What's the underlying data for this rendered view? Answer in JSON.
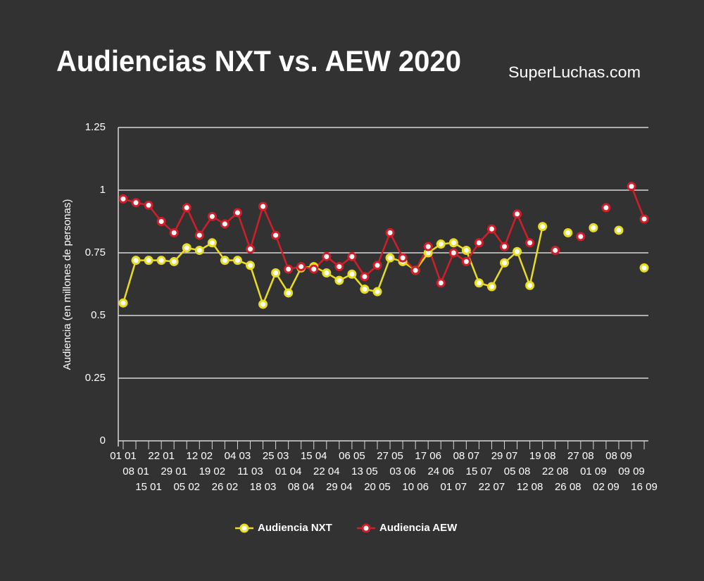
{
  "chart_data": {
    "type": "line",
    "title": "Audiencias NXT vs. AEW 2020",
    "subtitle": "SuperLuchas.com",
    "y_label": "Audiencia (en millones de personas)",
    "categories": [
      "01 01",
      "08 01",
      "15 01",
      "22 01",
      "29 01",
      "05 02",
      "12 02",
      "19 02",
      "26 02",
      "04 03",
      "11 03",
      "18 03",
      "25 03",
      "01 04",
      "08 04",
      "15 04",
      "22 04",
      "29 04",
      "06 05",
      "13 05",
      "20 05",
      "27 05",
      "03 06",
      "10 06",
      "17 06",
      "24 06",
      "01 07",
      "08 07",
      "15 07",
      "22 07",
      "29 07",
      "05 08",
      "12 08",
      "19 08",
      "22 08",
      "26 08",
      "27 08",
      "01 09",
      "02 09",
      "08 09",
      "09 09",
      "16 09"
    ],
    "series": [
      {
        "name": "Audiencia NXT",
        "color": "#e9dd1f",
        "values": [
          0.55,
          0.72,
          0.72,
          0.72,
          0.715,
          0.77,
          0.76,
          0.79,
          0.72,
          0.72,
          0.7,
          0.545,
          0.67,
          0.59,
          0.69,
          0.695,
          0.67,
          0.64,
          0.665,
          0.605,
          0.595,
          0.73,
          0.715,
          0.68,
          0.75,
          0.785,
          0.79,
          0.76,
          0.63,
          0.615,
          0.71,
          0.755,
          0.62,
          0.855,
          null,
          0.83,
          null,
          0.85,
          null,
          0.84,
          null,
          0.69
        ]
      },
      {
        "name": "Audiencia AEW",
        "color": "#d01f2a",
        "values": [
          0.965,
          0.95,
          0.94,
          0.875,
          0.83,
          0.93,
          0.82,
          0.895,
          0.865,
          0.91,
          0.765,
          0.935,
          0.82,
          0.685,
          0.695,
          0.685,
          0.735,
          0.695,
          0.735,
          0.655,
          0.7,
          0.83,
          0.73,
          0.68,
          0.775,
          0.63,
          0.75,
          0.715,
          0.79,
          0.845,
          0.775,
          0.905,
          0.79,
          null,
          0.76,
          null,
          0.815,
          null,
          0.93,
          null,
          1.015,
          0.885
        ]
      }
    ],
    "ylim": [
      0,
      1.25
    ],
    "yticks": [
      0,
      0.25,
      0.5,
      0.75,
      1,
      1.25
    ],
    "grid": true,
    "legend": "bottom"
  }
}
